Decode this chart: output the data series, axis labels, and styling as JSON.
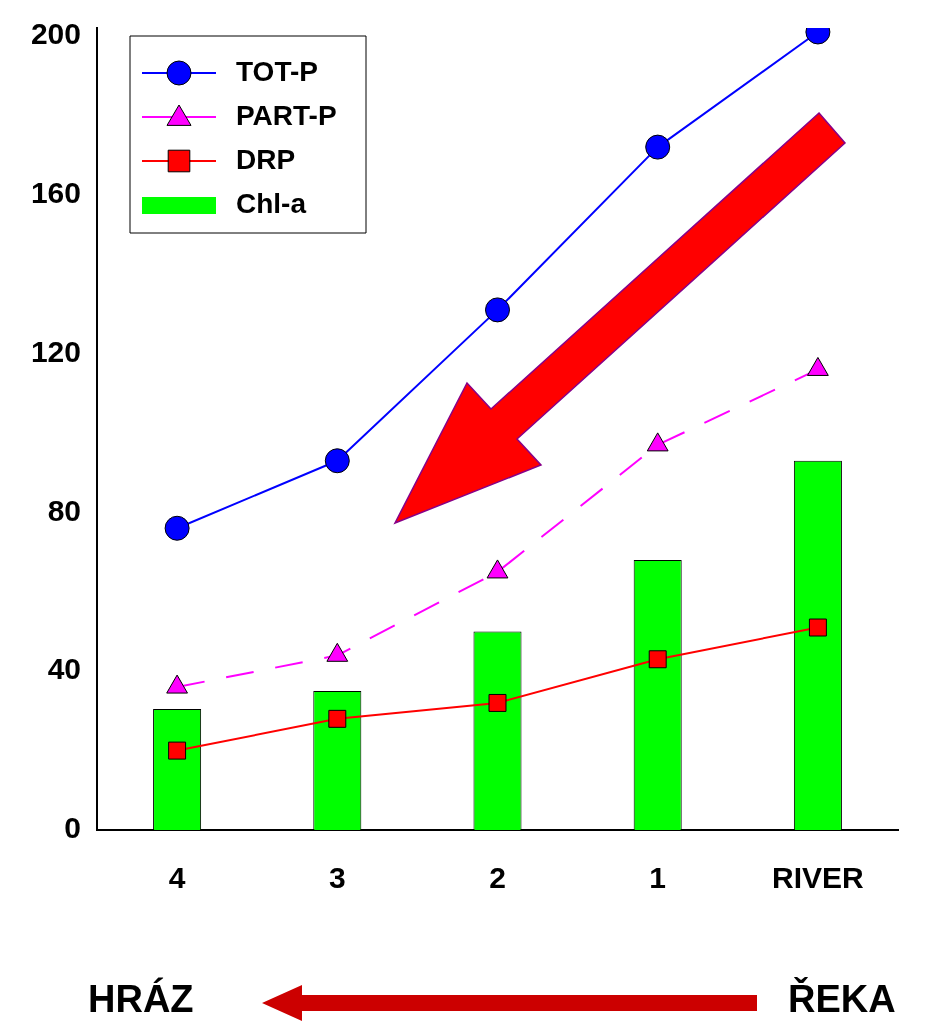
{
  "chart_data": {
    "type": "bar",
    "categories": [
      "4",
      "3",
      "2",
      "1",
      "RIVER"
    ],
    "series": [
      {
        "name": "TOT-P",
        "type": "line",
        "color": "#0000ff",
        "marker": "circle",
        "line_style": "solid",
        "values": [
          76,
          93,
          131,
          172,
          201
        ]
      },
      {
        "name": "PART-P",
        "type": "line",
        "color": "#ff00ff",
        "marker": "triangle",
        "line_style": "dashed",
        "values": [
          36,
          44,
          65,
          97,
          116
        ]
      },
      {
        "name": "DRP",
        "type": "line",
        "color": "#ff0000",
        "marker": "square",
        "line_style": "solid",
        "values": [
          20,
          28,
          32,
          43,
          51
        ]
      },
      {
        "name": "Chl-a",
        "color": "#00ff00",
        "values": [
          30.5,
          35,
          50,
          68,
          93
        ]
      }
    ],
    "ylim": [
      0,
      202
    ],
    "yticks": [
      0,
      40,
      80,
      120,
      160,
      200
    ],
    "grid": false,
    "legend": "top left",
    "annotations": [
      "HRÁZ",
      "ŘEKA"
    ]
  }
}
